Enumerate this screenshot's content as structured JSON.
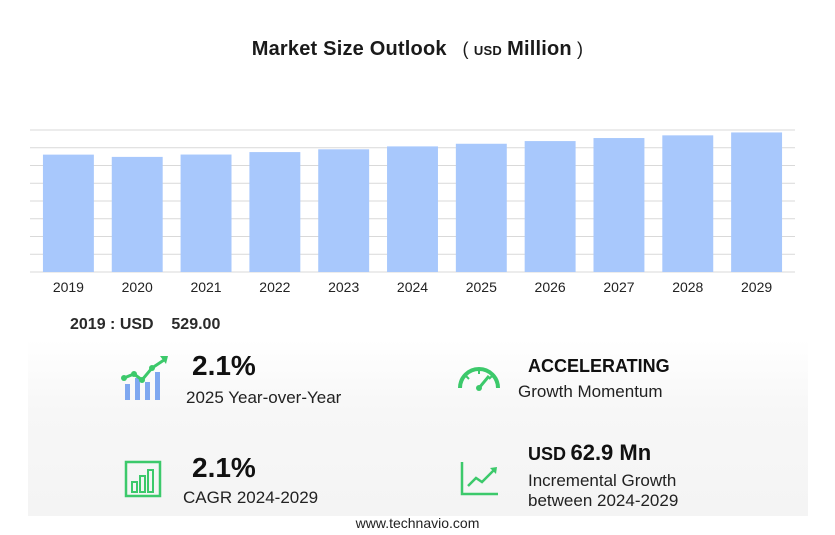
{
  "header": {
    "title": "Market Size Outlook",
    "unit_prefix": "USD",
    "unit_suffix": "Million"
  },
  "chart_data": {
    "type": "bar",
    "categories": [
      "2019",
      "2020",
      "2021",
      "2022",
      "2023",
      "2024",
      "2025",
      "2026",
      "2027",
      "2028",
      "2029"
    ],
    "values": [
      529.0,
      518.8,
      529.4,
      540.5,
      553.0,
      566.1,
      578.0,
      590.1,
      603.8,
      615.9,
      629.0
    ],
    "ylim": [
      0,
      640
    ],
    "grid": true,
    "bar_color": "#a8c8fc"
  },
  "base_value": {
    "year": "2019",
    "label": "USD",
    "value": "529.00"
  },
  "metrics": {
    "yoy": {
      "value": "2.1%",
      "label": "2025 Year-over-Year",
      "icon": "growth-chart-icon"
    },
    "momentum": {
      "value": "ACCELERATING",
      "label": "Growth Momentum",
      "icon": "speedometer-icon"
    },
    "cagr": {
      "value": "2.1%",
      "label": "CAGR 2024-2029",
      "icon": "bar-chart-icon"
    },
    "incremental": {
      "prefix": "USD",
      "value": "62.9 Mn",
      "label_line1": "Incremental Growth",
      "label_line2": "between 2024-2029",
      "icon": "trend-line-icon"
    }
  },
  "colors": {
    "accent_green": "#3cc96b",
    "accent_blue": "#7fa8f0",
    "grid": "#d9d9d9"
  },
  "footer": {
    "site": "www.technavio.com"
  }
}
